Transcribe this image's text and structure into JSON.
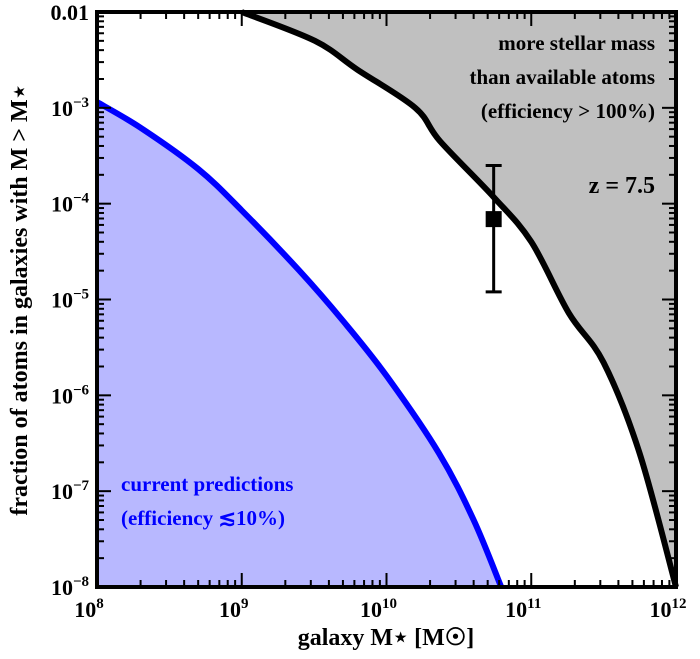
{
  "chart_data": {
    "type": "area",
    "xlabel": "galaxy M⋆ [M☉]",
    "ylabel": "fraction of atoms in galaxies with M > M⋆",
    "xscale": "log",
    "yscale": "log",
    "xlim": [
      100000000.0,
      1000000000000.0
    ],
    "ylim": [
      1e-08,
      0.01
    ],
    "x_ticks": [
      {
        "value": 100000000.0,
        "base": "10",
        "exp": "8"
      },
      {
        "value": 1000000000.0,
        "base": "10",
        "exp": "9"
      },
      {
        "value": 10000000000.0,
        "base": "10",
        "exp": "10"
      },
      {
        "value": 100000000000.0,
        "base": "10",
        "exp": "11"
      },
      {
        "value": 1000000000000.0,
        "base": "10",
        "exp": "12"
      }
    ],
    "y_ticks": [
      {
        "value": 0.01,
        "base": "0.01",
        "exp": ""
      },
      {
        "value": 0.001,
        "base": "10",
        "exp": "−3"
      },
      {
        "value": 0.0001,
        "base": "10",
        "exp": "−4"
      },
      {
        "value": 1e-05,
        "base": "10",
        "exp": "−5"
      },
      {
        "value": 1e-06,
        "base": "10",
        "exp": "−6"
      },
      {
        "value": 1e-07,
        "base": "10",
        "exp": "−7"
      },
      {
        "value": 1e-08,
        "base": "10",
        "exp": "−8"
      }
    ],
    "series": [
      {
        "role": "upper limit (efficiency 100%)",
        "color": "#000000",
        "fill": "#c0c0c0",
        "fill_side": "above",
        "x": [
          1000000000.0,
          3200000000.0,
          6300000000.0,
          15800000000.0,
          23400000000.0,
          55000000000.0,
          100000000000.0,
          182000000000.0,
          316000000000.0,
          560000000000.0,
          1000000000000.0
        ],
        "y": [
          0.01,
          0.005,
          0.0025,
          0.001,
          0.00045,
          0.000117,
          4e-05,
          7.2e-06,
          2.2e-06,
          2.5e-07,
          1e-08
        ]
      },
      {
        "role": "current predictions",
        "color": "#0000ff",
        "fill": "#b8b8ff",
        "fill_side": "below",
        "x": [
          100000000.0,
          200000000.0,
          500000000.0,
          1000000000.0,
          2500000000.0,
          5000000000.0,
          10000000000.0,
          23000000000.0,
          40000000000.0,
          62000000000.0
        ],
        "y": [
          0.00115,
          0.00062,
          0.00023,
          8.5e-05,
          2e-05,
          6e-06,
          1.6e-06,
          2.5e-07,
          5e-08,
          1e-08
        ]
      }
    ],
    "points": [
      {
        "x": 55000000000.0,
        "y": 6.9e-05,
        "y_err_high": 0.00025,
        "y_err_low": 1.2e-05,
        "marker": "square",
        "color": "#000000"
      }
    ],
    "annotations": {
      "gray_region": [
        "more stellar mass",
        "than available atoms",
        "(efficiency > 100%)"
      ],
      "redshift": "z = 7.5",
      "blue_region": [
        "current predictions",
        "(efficiency ≲10%)"
      ],
      "blue_color": "#0000ff"
    }
  }
}
